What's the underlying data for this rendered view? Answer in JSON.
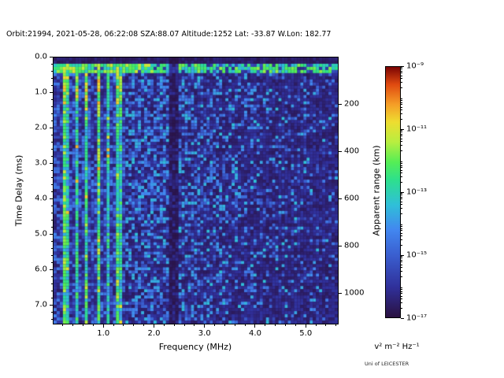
{
  "figure": {
    "title": "Orbit:21994, 2021-05-28, 06:22:08 SZA:88.07 Altitude:1252 Lat: -33.87 W.Lon: 182.77",
    "credit": "Uni of LEICESTER"
  },
  "chart_data": {
    "type": "heatmap",
    "title": "Orbit:21994, 2021-05-28, 06:22:08 SZA:88.07 Altitude:1252 Lat: -33.87 W.Lon: 182.77",
    "xlabel": "Frequency (MHz)",
    "ylabel_left": "Time Delay (ms)",
    "ylabel_right": "Apparent range (km)",
    "colorbar_label": "v² m⁻² Hz⁻¹",
    "x_range_mhz": [
      0.0,
      5.65
    ],
    "y_range_ms": [
      0.0,
      7.55
    ],
    "x_ticks": [
      "1.0",
      "2.0",
      "3.0",
      "4.0",
      "5.0"
    ],
    "x_tick_values": [
      1.0,
      2.0,
      3.0,
      4.0,
      5.0
    ],
    "y_ticks_left": [
      "0.0",
      "1.0",
      "2.0",
      "3.0",
      "4.0",
      "5.0",
      "6.0",
      "7.0"
    ],
    "y_tick_values_left": [
      0.0,
      1.0,
      2.0,
      3.0,
      4.0,
      5.0,
      6.0,
      7.0
    ],
    "y_ticks_right": [
      "200",
      "400",
      "600",
      "800",
      "1000"
    ],
    "y_tick_values_right_km": [
      200,
      400,
      600,
      800,
      1000
    ],
    "range_km_per_ms": 150,
    "colorbar_scale": "log",
    "colorbar_ticks": [
      "10⁻⁹",
      "10⁻¹¹",
      "10⁻¹³",
      "10⁻¹⁵",
      "10⁻¹⁷"
    ],
    "colorbar_exponents": [
      -9,
      -11,
      -13,
      -15,
      -17
    ],
    "colormap_stops": [
      [
        0.0,
        "#2a1140"
      ],
      [
        0.12,
        "#30309a"
      ],
      [
        0.25,
        "#3a5fd0"
      ],
      [
        0.35,
        "#4287f0"
      ],
      [
        0.45,
        "#2fc0d8"
      ],
      [
        0.55,
        "#2ee08c"
      ],
      [
        0.62,
        "#55ee55"
      ],
      [
        0.7,
        "#b8ee40"
      ],
      [
        0.78,
        "#eedd30"
      ],
      [
        0.85,
        "#f59e27"
      ],
      [
        0.93,
        "#e04a10"
      ],
      [
        1.0,
        "#7a0403"
      ]
    ],
    "heatmap": {
      "seed": 21994,
      "nx": 91,
      "ny": 85,
      "stripe_max_freq_mhz": 1.42,
      "stripe_spacing_mhz": 0.088,
      "surface_band_delay_ms": [
        0.16,
        0.42
      ],
      "notch_freq_mhz": [
        2.32,
        2.46
      ]
    },
    "features": [
      "Bright horizontal echo band at ~0.25 ms delay across all frequencies, broken into dashes above ~3 MHz",
      "Bright vertical plasma-oscillation harmonic stripes below ~1.4 MHz extending over the full delay range",
      "Dark vertical notch near 2.4 MHz over the full delay range",
      "Diffuse blue speckle noise background, fading at higher frequencies and longer delays"
    ]
  }
}
